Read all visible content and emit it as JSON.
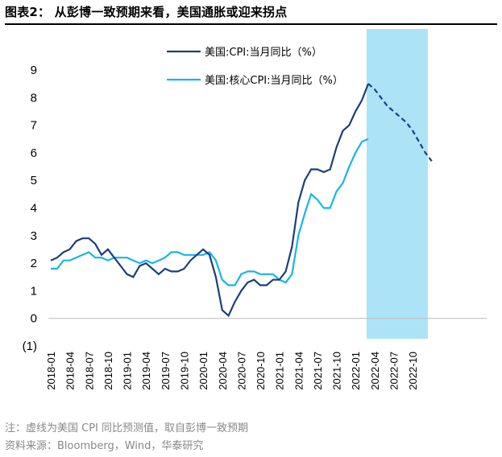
{
  "figure_title": "图表2： 从彭博一致预期来看，美国通胀或迎来拐点",
  "note": "注：虚线为美国 CPI 同比预测值，取自彭博一致预期",
  "source": "资料来源：Bloomberg，Wind，华泰研究",
  "colors": {
    "headline": "#1b3f7a",
    "core": "#18b4ea",
    "forecast_band": "#ace3f7"
  },
  "chart_data": {
    "type": "line",
    "title": "",
    "xlabel": "",
    "ylabel": "",
    "ylim": [
      -1,
      9
    ],
    "yticks": [
      -1,
      0,
      1,
      2,
      3,
      4,
      5,
      6,
      7,
      8,
      9
    ],
    "ytick_labels": [
      "(1)",
      "0",
      "1",
      "2",
      "3",
      "4",
      "5",
      "6",
      "7",
      "8",
      "9"
    ],
    "xticks": [
      "2018-01",
      "2018-04",
      "2018-07",
      "2018-10",
      "2019-01",
      "2019-04",
      "2019-07",
      "2019-10",
      "2020-01",
      "2020-04",
      "2020-07",
      "2020-10",
      "2021-01",
      "2021-04",
      "2021-07",
      "2021-10",
      "2022-01",
      "2022-04",
      "2022-07",
      "2022-10"
    ],
    "forecast_shading": {
      "from": "2022-03",
      "to": "2022-12"
    },
    "legend": [
      {
        "name": "美国:CPI:当月同比（%）",
        "series": "headline"
      },
      {
        "name": "美国:核心CPI:当月同比（%）",
        "series": "core"
      }
    ],
    "series": [
      {
        "name": "美国:CPI:当月同比（%）",
        "key": "headline",
        "start": "2018-01",
        "values": [
          2.1,
          2.2,
          2.4,
          2.5,
          2.8,
          2.9,
          2.9,
          2.7,
          2.3,
          2.5,
          2.2,
          1.9,
          1.6,
          1.5,
          1.9,
          2.0,
          1.8,
          1.6,
          1.8,
          1.7,
          1.7,
          1.8,
          2.1,
          2.3,
          2.5,
          2.3,
          1.5,
          0.3,
          0.1,
          0.6,
          1.0,
          1.3,
          1.4,
          1.2,
          1.2,
          1.4,
          1.4,
          1.7,
          2.6,
          4.2,
          5.0,
          5.4,
          5.4,
          5.3,
          5.4,
          6.2,
          6.8,
          7.0,
          7.5,
          7.9,
          8.5
        ],
        "forecast": {
          "start": "2022-03",
          "values": [
            8.5,
            8.3,
            8.0,
            7.7,
            7.5,
            7.3,
            7.1,
            6.8,
            6.4,
            6.0,
            5.7
          ]
        }
      },
      {
        "name": "美国:核心CPI:当月同比（%）",
        "key": "core",
        "start": "2018-01",
        "values": [
          1.8,
          1.8,
          2.1,
          2.1,
          2.2,
          2.3,
          2.4,
          2.2,
          2.2,
          2.1,
          2.2,
          2.2,
          2.2,
          2.1,
          2.0,
          2.1,
          2.0,
          2.1,
          2.2,
          2.4,
          2.4,
          2.3,
          2.3,
          2.3,
          2.3,
          2.4,
          2.1,
          1.4,
          1.2,
          1.2,
          1.6,
          1.7,
          1.7,
          1.6,
          1.6,
          1.6,
          1.4,
          1.3,
          1.6,
          3.0,
          3.8,
          4.5,
          4.3,
          4.0,
          4.0,
          4.6,
          4.9,
          5.5,
          6.0,
          6.4,
          6.5
        ]
      }
    ]
  }
}
